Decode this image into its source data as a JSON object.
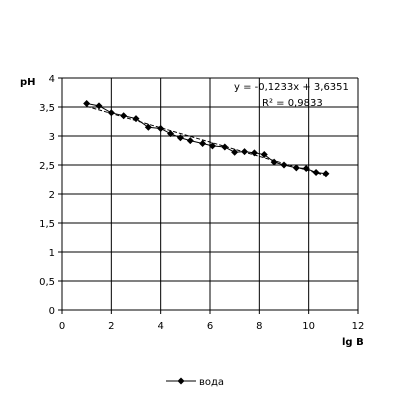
{
  "chart_data": {
    "type": "scatter",
    "title": "",
    "xlabel": "lg  B",
    "ylabel": "pH",
    "xlim": [
      0,
      12
    ],
    "ylim": [
      0,
      4
    ],
    "x_ticks": [
      "0",
      "2",
      "4",
      "6",
      "8",
      "10",
      "12"
    ],
    "y_ticks": [
      "0",
      "0,5",
      "1",
      "1,5",
      "2",
      "2,5",
      "3",
      "3,5",
      "4"
    ],
    "grid": true,
    "legend_position": "bottom",
    "series": [
      {
        "name": "вода",
        "color": "#000000",
        "marker": "diamond",
        "line": true,
        "x": [
          1.0,
          1.5,
          2.0,
          2.5,
          3.0,
          3.5,
          4.0,
          4.4,
          4.8,
          5.2,
          5.7,
          6.1,
          6.6,
          7.0,
          7.4,
          7.8,
          8.2,
          8.6,
          9.0,
          9.5,
          9.9,
          10.3,
          10.7
        ],
        "y": [
          3.56,
          3.52,
          3.4,
          3.35,
          3.3,
          3.15,
          3.13,
          3.04,
          2.97,
          2.92,
          2.87,
          2.83,
          2.81,
          2.72,
          2.73,
          2.71,
          2.68,
          2.55,
          2.5,
          2.45,
          2.44,
          2.37,
          2.35
        ]
      }
    ],
    "trendline": {
      "slope": -0.1233,
      "intercept": 3.6351,
      "equation_text": "y = -0,1233x + 3,6351",
      "r2_text": "R² = 0,9833"
    }
  }
}
